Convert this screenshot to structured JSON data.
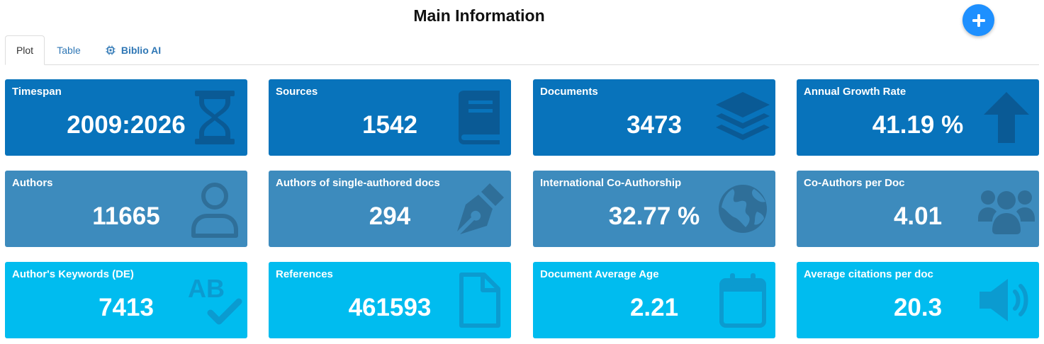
{
  "header": {
    "title": "Main Information"
  },
  "tabs": [
    {
      "label": "Plot",
      "active": true
    },
    {
      "label": "Table",
      "active": false
    },
    {
      "label": "Biblio AI",
      "active": false,
      "icon": "microchip-icon"
    }
  ],
  "fab": {
    "icon": "plus-icon",
    "color": "#1e90ff"
  },
  "colors": {
    "row1": "#0873bb",
    "row2": "#3d8bbd",
    "row3": "#00bcef",
    "tab_link": "#2f77b5"
  },
  "cards": [
    {
      "label": "Timespan",
      "value": "2009:2026",
      "icon": "hourglass-icon"
    },
    {
      "label": "Sources",
      "value": "1542",
      "icon": "book-icon"
    },
    {
      "label": "Documents",
      "value": "3473",
      "icon": "layers-icon"
    },
    {
      "label": "Annual Growth Rate",
      "value": "41.19 %",
      "icon": "arrow-up-icon"
    },
    {
      "label": "Authors",
      "value": "11665",
      "icon": "user-icon"
    },
    {
      "label": "Authors of single-authored docs",
      "value": "294",
      "icon": "pen-nib-icon"
    },
    {
      "label": "International Co-Authorship",
      "value": "32.77 %",
      "icon": "globe-icon"
    },
    {
      "label": "Co-Authors per Doc",
      "value": "4.01",
      "icon": "users-icon"
    },
    {
      "label": "Author's Keywords (DE)",
      "value": "7413",
      "icon": "spell-check-icon"
    },
    {
      "label": "References",
      "value": "461593",
      "icon": "file-icon"
    },
    {
      "label": "Document Average Age",
      "value": "2.21",
      "icon": "calendar-icon"
    },
    {
      "label": "Average citations per doc",
      "value": "20.3",
      "icon": "volume-icon"
    }
  ]
}
